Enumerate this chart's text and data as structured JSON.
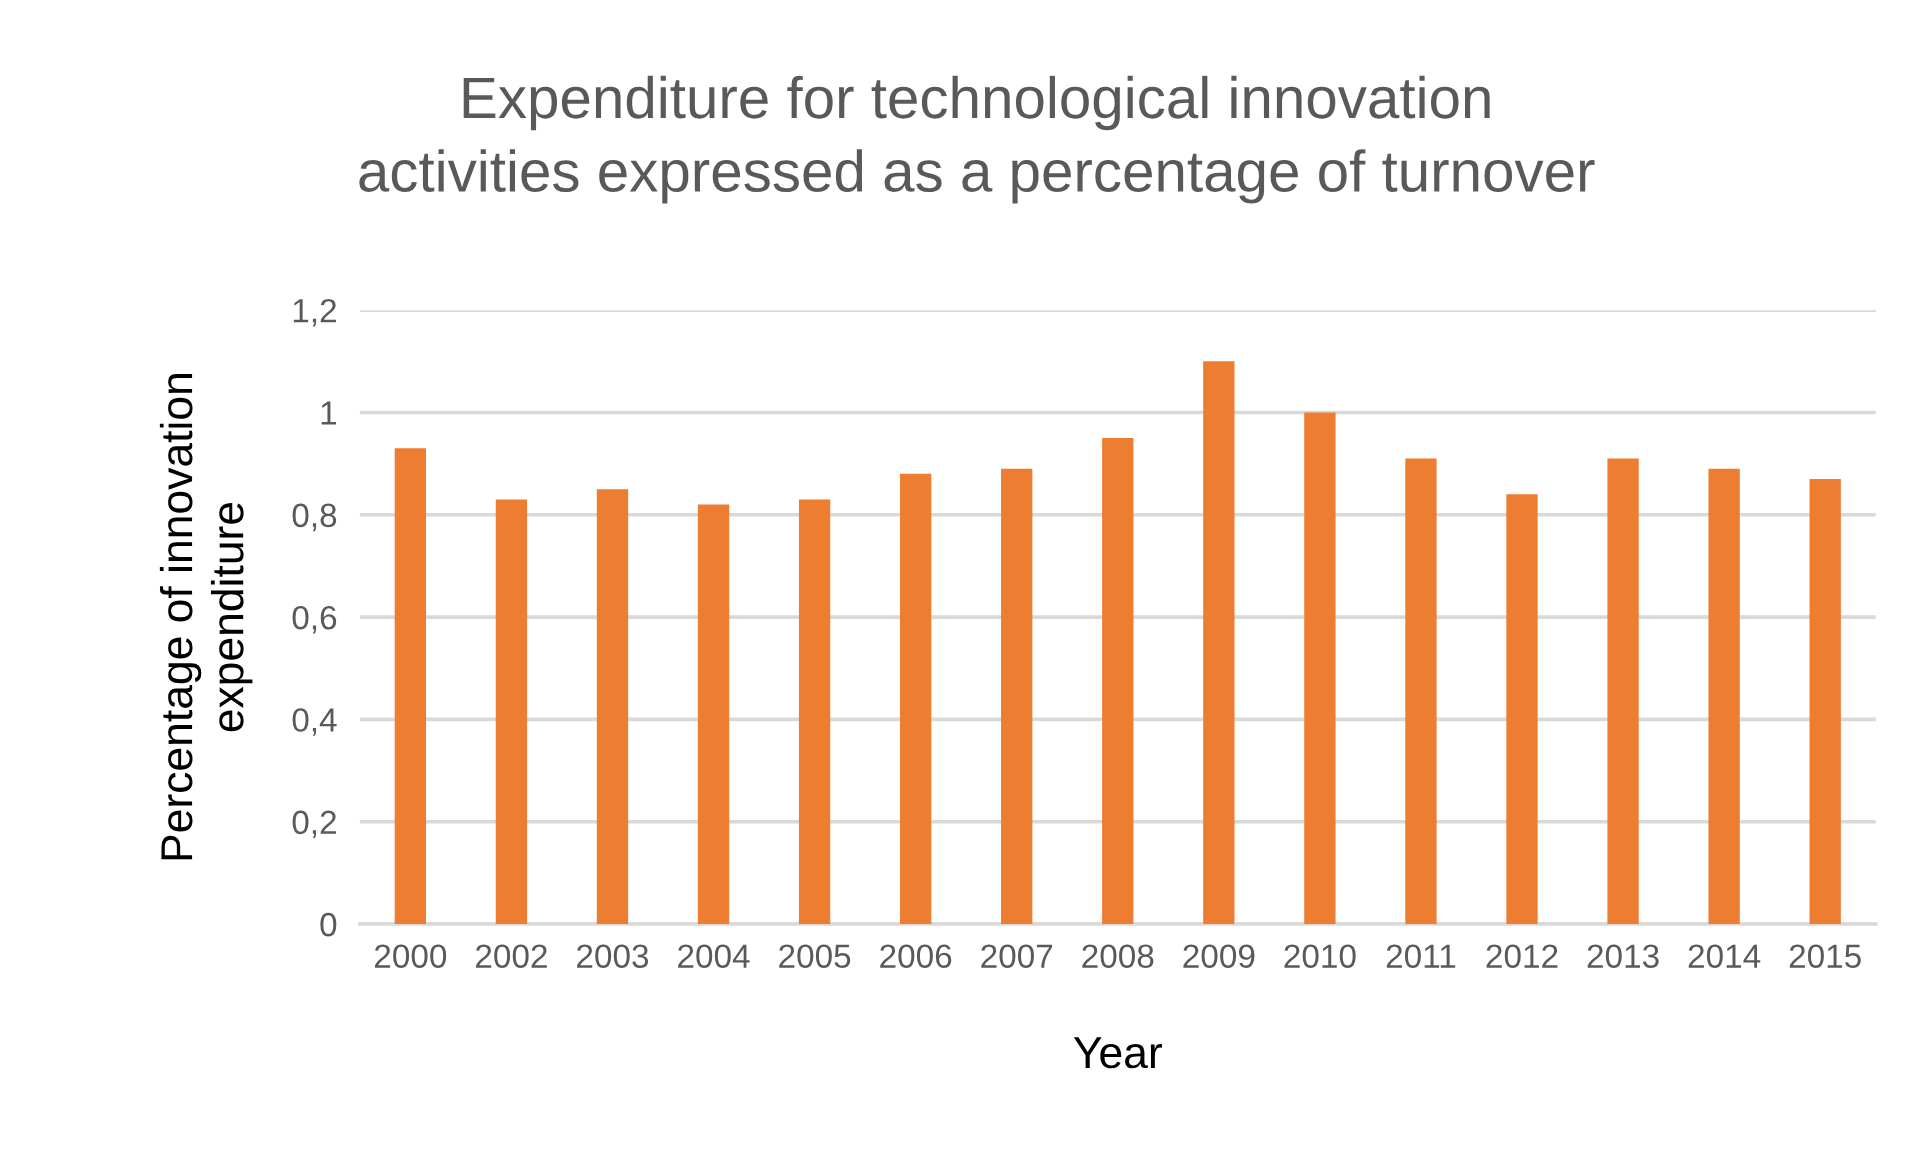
{
  "chart_data": {
    "type": "bar",
    "title": "Expenditure for technological innovation\nactivities expressed as a percentage of turnover",
    "xlabel": "Year",
    "ylabel": "Percentage of innovation\nexpenditure",
    "categories": [
      "2000",
      "2002",
      "2003",
      "2004",
      "2005",
      "2006",
      "2007",
      "2008",
      "2009",
      "2010",
      "2011",
      "2012",
      "2013",
      "2014",
      "2015"
    ],
    "values": [
      0.93,
      0.83,
      0.85,
      0.82,
      0.83,
      0.88,
      0.89,
      0.95,
      1.1,
      1.0,
      0.91,
      0.84,
      0.91,
      0.89,
      0.87
    ],
    "color": "#ed7d31",
    "ylim": [
      0,
      1.2
    ],
    "yticks": [
      0,
      {
        "value": 0.2,
        "label": "0,2"
      },
      {
        "value": 0.4,
        "label": "0,4"
      },
      {
        "value": 0.6,
        "label": "0,6"
      },
      {
        "value": 0.8,
        "label": "0,8"
      },
      1,
      {
        "value": 1.2,
        "label": "1,2"
      }
    ],
    "grid": "y",
    "legend": false
  }
}
